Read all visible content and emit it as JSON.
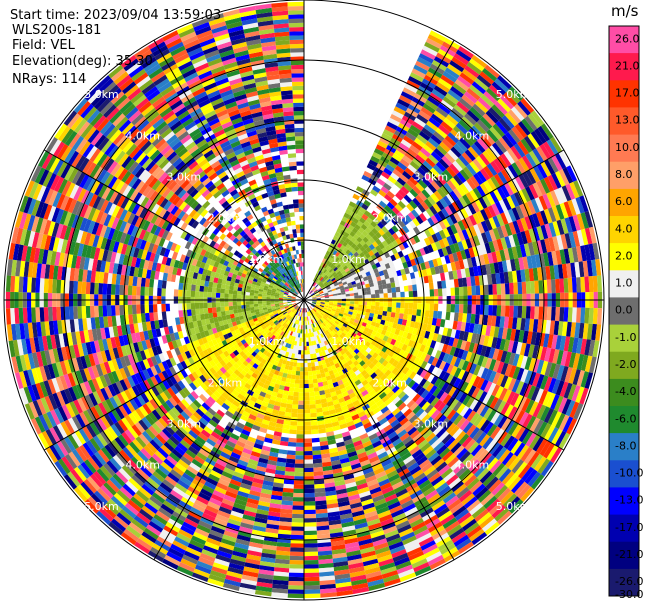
{
  "info": {
    "start_time": "Start time: 2023/09/04 13:59:03",
    "instrument": "WLS200s-181",
    "field": "Field: VEL",
    "elevation": "Elevation(deg): 35.30",
    "nrays": "NRays: 114"
  },
  "colorbar": {
    "unit": "m/s",
    "levels": [
      {
        "label": "26.0",
        "color": "#ff4da6"
      },
      {
        "label": "21.0",
        "color": "#ff1a4d"
      },
      {
        "label": "17.0",
        "color": "#ff3300"
      },
      {
        "label": "13.0",
        "color": "#ff5a2a"
      },
      {
        "label": "10.0",
        "color": "#ff7a52"
      },
      {
        "label": "8.0",
        "color": "#ff9f68"
      },
      {
        "label": "6.0",
        "color": "#ffa500"
      },
      {
        "label": "4.0",
        "color": "#ffd400"
      },
      {
        "label": "2.0",
        "color": "#ffff00"
      },
      {
        "label": "1.0",
        "color": "#f0f0f0"
      },
      {
        "label": "0.0",
        "color": "#6e6e6e"
      },
      {
        "label": "-1.0",
        "color": "#a9d13a"
      },
      {
        "label": "-2.0",
        "color": "#7fa91f"
      },
      {
        "label": "-4.0",
        "color": "#3c8c1e"
      },
      {
        "label": "-6.0",
        "color": "#1f8a2e"
      },
      {
        "label": "-8.0",
        "color": "#2a7fc8"
      },
      {
        "label": "-10.0",
        "color": "#1a4fd0"
      },
      {
        "label": "-13.0",
        "color": "#0000ff"
      },
      {
        "label": "-17.0",
        "color": "#0000b0"
      },
      {
        "label": "-21.0",
        "color": "#000080"
      },
      {
        "label": "-26.0",
        "color": "#1a1a6e"
      },
      {
        "label": "-30.0",
        "color": "#ffffff"
      }
    ]
  },
  "chart_data": {
    "type": "heatmap",
    "projection": "polar PPI (plan position indicator)",
    "field": "VEL",
    "units": "m/s",
    "elevation_deg": 35.3,
    "n_rays": 114,
    "range_rings_km": [
      "1.0km",
      "2.0km",
      "3.0km",
      "4.0km",
      "5.0km"
    ],
    "range_ring_values_km": [
      1.0,
      2.0,
      3.0,
      4.0,
      5.0
    ],
    "missing_sector_azimuth_deg": [
      0,
      24
    ],
    "near_field_pattern": [
      {
        "azimuth_deg": [
          0,
          60
        ],
        "range_km": [
          0.3,
          1.8
        ],
        "dominant_value_ms": -2.0
      },
      {
        "azimuth_deg": [
          60,
          90
        ],
        "range_km": [
          0.3,
          1.6
        ],
        "dominant_value_ms": 0.0
      },
      {
        "azimuth_deg": [
          90,
          250
        ],
        "range_km": [
          0.2,
          2.2
        ],
        "dominant_value_ms": 2.0
      },
      {
        "azimuth_deg": [
          150,
          210
        ],
        "range_km": [
          0.2,
          1.0
        ],
        "dominant_value_ms": 1.0
      },
      {
        "azimuth_deg": [
          250,
          300
        ],
        "range_km": [
          0.3,
          2.0
        ],
        "dominant_value_ms": -2.0
      },
      {
        "azimuth_deg": [
          300,
          345
        ],
        "range_km": [
          0.1,
          0.8
        ],
        "dominant_value_ms": -8.0
      }
    ],
    "far_field_note": "noisy values spanning full color scale beyond ~2.5 km"
  }
}
